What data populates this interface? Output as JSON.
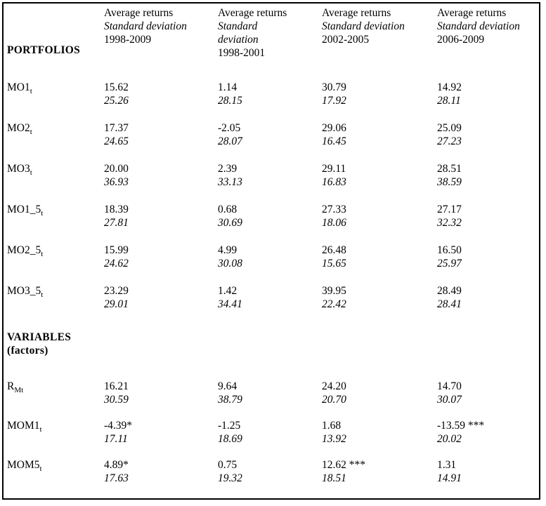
{
  "table": {
    "corner_label": "PORTFOLIOS",
    "headers": [
      {
        "returns": "Average returns",
        "stddev": "Standard deviation",
        "period": "1998-2009"
      },
      {
        "returns": "Average returns",
        "stddev": "Standard deviation",
        "period": "1998-2001"
      },
      {
        "returns": "Average returns",
        "stddev": "Standard deviation",
        "period": "2002-2005"
      },
      {
        "returns": "Average returns",
        "stddev": "Standard deviation",
        "period": "2006-2009"
      }
    ],
    "portfolio_rows": [
      {
        "label_main": "MO1",
        "label_sub": "t",
        "cells": [
          {
            "avg": "15.62",
            "sd": "25.26"
          },
          {
            "avg": "1.14",
            "sd": "28.15"
          },
          {
            "avg": "30.79",
            "sd": "17.92"
          },
          {
            "avg": "14.92",
            "sd": "28.11"
          }
        ]
      },
      {
        "label_main": "MO2",
        "label_sub": "t",
        "cells": [
          {
            "avg": "17.37",
            "sd": "24.65"
          },
          {
            "avg": "-2.05",
            "sd": "28.07"
          },
          {
            "avg": "29.06",
            "sd": "16.45"
          },
          {
            "avg": "25.09",
            "sd": "27.23"
          }
        ]
      },
      {
        "label_main": "MO3",
        "label_sub": "t",
        "cells": [
          {
            "avg": "20.00",
            "sd": "36.93"
          },
          {
            "avg": "2.39",
            "sd": "33.13"
          },
          {
            "avg": "29.11",
            "sd": "16.83"
          },
          {
            "avg": "28.51",
            "sd": "38.59"
          }
        ]
      },
      {
        "label_main": "MO1_5",
        "label_sub": "t",
        "cells": [
          {
            "avg": "18.39",
            "sd": "27.81"
          },
          {
            "avg": "0.68",
            "sd": "30.69"
          },
          {
            "avg": "27.33",
            "sd": "18.06"
          },
          {
            "avg": "27.17",
            "sd": "32.32"
          }
        ]
      },
      {
        "label_main": "MO2_5",
        "label_sub": "t",
        "cells": [
          {
            "avg": "15.99",
            "sd": "24.62"
          },
          {
            "avg": "4.99",
            "sd": "30.08"
          },
          {
            "avg": "26.48",
            "sd": "15.65"
          },
          {
            "avg": "16.50",
            "sd": "25.97"
          }
        ]
      },
      {
        "label_main": "MO3_5",
        "label_sub": "t",
        "cells": [
          {
            "avg": "23.29",
            "sd": "29.01"
          },
          {
            "avg": "1.42",
            "sd": "34.41"
          },
          {
            "avg": "39.95",
            "sd": "22.42"
          },
          {
            "avg": "28.49",
            "sd": "28.41"
          }
        ]
      }
    ],
    "variables_title": "VARIABLES",
    "variables_subtitle": "(factors)",
    "variable_rows": [
      {
        "label_main": "R",
        "label_sub": "Mt",
        "cells": [
          {
            "avg": "16.21",
            "sd": "30.59"
          },
          {
            "avg": "9.64",
            "sd": "38.79"
          },
          {
            "avg": "24.20",
            "sd": "20.70"
          },
          {
            "avg": "14.70",
            "sd": "30.07"
          }
        ]
      },
      {
        "label_main": "MOM1",
        "label_sub": "t",
        "cells": [
          {
            "avg": "-4.39*",
            "sd": "17.11"
          },
          {
            "avg": "-1.25",
            "sd": "18.69"
          },
          {
            "avg": "1.68",
            "sd": "13.92"
          },
          {
            "avg": "-13.59 ***",
            "sd": "20.02"
          }
        ]
      },
      {
        "label_main": "MOM5",
        "label_sub": "t",
        "cells": [
          {
            "avg": "4.89*",
            "sd": "17.63"
          },
          {
            "avg": "0.75",
            "sd": "19.32"
          },
          {
            "avg": "12.62 ***",
            "sd": "18.51"
          },
          {
            "avg": "1.31",
            "sd": "14.91"
          }
        ]
      }
    ]
  }
}
